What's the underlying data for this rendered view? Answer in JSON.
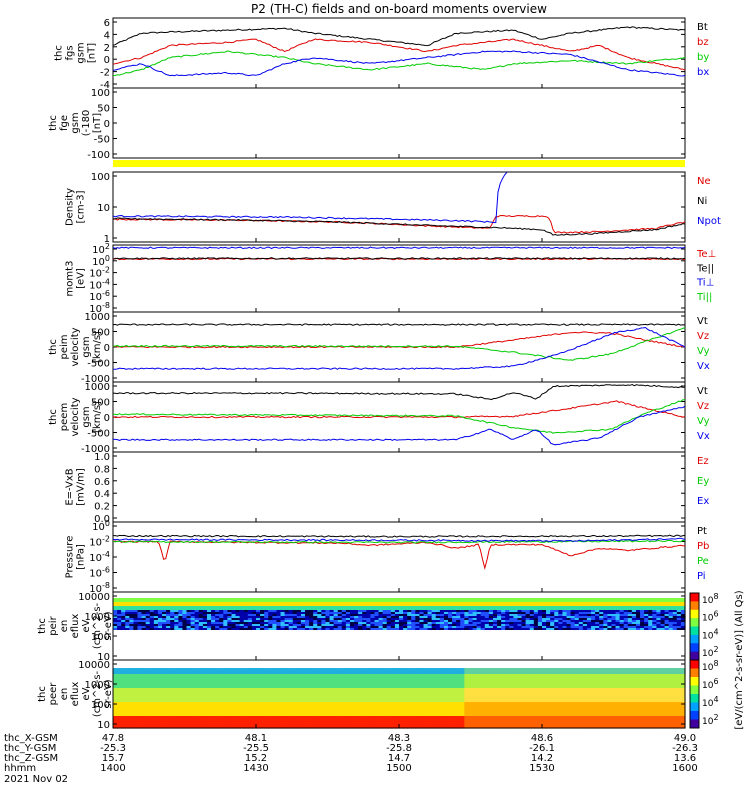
{
  "title": "P2 (TH-C) fields and on-board moments overview",
  "date_label": "2021 Nov 02",
  "colors": {
    "black": "#000000",
    "red": "#e00000",
    "green": "#00cc00",
    "blue": "#0000ee",
    "yellow": "#ffff00"
  },
  "colorbar": {
    "label": "[eV/(cm^2-s-sr-eV)] (All Qs)",
    "top_ticks": [
      "10^8",
      "10^6",
      "10^4",
      "10^2"
    ],
    "bottom_ticks": [
      "10^8",
      "10^6",
      "10^4",
      "10^2"
    ]
  },
  "xaxis": {
    "tick_labels": [
      "1400",
      "1430",
      "1500",
      "1530",
      "1600"
    ],
    "rows": [
      {
        "label": "thc_X-GSM",
        "values": [
          "47.8",
          "48.1",
          "48.3",
          "48.6",
          "49.0"
        ]
      },
      {
        "label": "thc_Y-GSM",
        "values": [
          "-25.3",
          "-25.5",
          "-25.8",
          "-26.1",
          "-26.3"
        ]
      },
      {
        "label": "thc_Z-GSM",
        "values": [
          "15.7",
          "15.2",
          "14.7",
          "14.2",
          "13.6"
        ]
      },
      {
        "label": "hhmm",
        "values": [
          "1400",
          "1430",
          "1500",
          "1530",
          "1600"
        ]
      }
    ]
  },
  "chart_data": [
    {
      "type": "line",
      "ylabel": [
        "thc",
        "fgs",
        "gsm",
        "[nT]"
      ],
      "yticks": [
        "6",
        "4",
        "2",
        "0",
        "-2",
        "-4"
      ],
      "ylim": [
        -5,
        6.5
      ],
      "legend": [
        "Bt",
        "bz",
        "by",
        "bx"
      ],
      "series": [
        {
          "name": "Bt",
          "color": "black",
          "points": [
            [
              0,
              2
            ],
            [
              0.05,
              4
            ],
            [
              0.1,
              4.2
            ],
            [
              0.2,
              4.5
            ],
            [
              0.3,
              4.8
            ],
            [
              0.35,
              4
            ],
            [
              0.45,
              3
            ],
            [
              0.55,
              2
            ],
            [
              0.6,
              4
            ],
            [
              0.7,
              4.5
            ],
            [
              0.75,
              3
            ],
            [
              0.8,
              4
            ],
            [
              0.9,
              5
            ],
            [
              1,
              4.5
            ]
          ]
        },
        {
          "name": "bz",
          "color": "red",
          "points": [
            [
              0,
              -1
            ],
            [
              0.05,
              0
            ],
            [
              0.1,
              2
            ],
            [
              0.2,
              2.5
            ],
            [
              0.25,
              3
            ],
            [
              0.3,
              1
            ],
            [
              0.35,
              3
            ],
            [
              0.45,
              2.5
            ],
            [
              0.55,
              1
            ],
            [
              0.6,
              2
            ],
            [
              0.7,
              3
            ],
            [
              0.8,
              1
            ],
            [
              0.85,
              2
            ],
            [
              0.9,
              0
            ],
            [
              1,
              -2
            ]
          ]
        },
        {
          "name": "by",
          "color": "green",
          "points": [
            [
              0,
              -3
            ],
            [
              0.05,
              -2
            ],
            [
              0.1,
              0
            ],
            [
              0.2,
              1
            ],
            [
              0.3,
              0
            ],
            [
              0.35,
              -1
            ],
            [
              0.45,
              -2
            ],
            [
              0.55,
              -1
            ],
            [
              0.65,
              -2
            ],
            [
              0.7,
              -1
            ],
            [
              0.8,
              -0.5
            ],
            [
              0.9,
              -1
            ],
            [
              1,
              0
            ]
          ]
        },
        {
          "name": "bx",
          "color": "blue",
          "points": [
            [
              0,
              -2
            ],
            [
              0.05,
              -1
            ],
            [
              0.1,
              -3
            ],
            [
              0.2,
              -2.5
            ],
            [
              0.25,
              -3
            ],
            [
              0.3,
              -1
            ],
            [
              0.35,
              0
            ],
            [
              0.45,
              -1
            ],
            [
              0.55,
              0
            ],
            [
              0.65,
              1
            ],
            [
              0.7,
              1
            ],
            [
              0.8,
              0.5
            ],
            [
              0.9,
              -2
            ],
            [
              1,
              -3
            ]
          ]
        }
      ]
    },
    {
      "type": "line",
      "ylabel": [
        "thc",
        "fge",
        "gsm",
        "(-180",
        "[nT]"
      ],
      "yticks": [
        "100",
        "50",
        "0",
        "-50",
        "-100"
      ],
      "ylim": [
        -130,
        100
      ],
      "legend": [],
      "series": []
    },
    {
      "type": "line",
      "ylabel": [
        "Density",
        "[cm-3]"
      ],
      "yticks": [
        "100",
        "10",
        "1"
      ],
      "ylim": [
        0.6,
        300
      ],
      "log": true,
      "legend": [
        "Ne",
        "Ni",
        "Npot"
      ],
      "series": [
        {
          "name": "Ne",
          "color": "red",
          "points": [
            [
              0,
              4.5
            ],
            [
              0.2,
              4.2
            ],
            [
              0.4,
              3.5
            ],
            [
              0.55,
              2.5
            ],
            [
              0.66,
              2
            ],
            [
              0.67,
              6
            ],
            [
              0.76,
              6
            ],
            [
              0.77,
              1.4
            ],
            [
              0.85,
              1.5
            ],
            [
              0.95,
              2
            ],
            [
              1,
              3.5
            ]
          ]
        },
        {
          "name": "Ni",
          "color": "black",
          "points": [
            [
              0,
              4.8
            ],
            [
              0.2,
              4.3
            ],
            [
              0.4,
              3.5
            ],
            [
              0.55,
              2.6
            ],
            [
              0.66,
              2.2
            ],
            [
              0.75,
              1.8
            ],
            [
              0.77,
              1.1
            ],
            [
              0.85,
              1.3
            ],
            [
              0.95,
              1.8
            ],
            [
              1,
              3
            ]
          ]
        },
        {
          "name": "Npot",
          "color": "blue",
          "points": [
            [
              0,
              6
            ],
            [
              0.3,
              5.5
            ],
            [
              0.6,
              4
            ],
            [
              0.67,
              3.5
            ],
            [
              0.69,
              300
            ]
          ]
        }
      ]
    },
    {
      "type": "line",
      "ylabel": [
        "momt3",
        "[eV]"
      ],
      "yticks": [
        "10^2",
        "10^0",
        "10^-2",
        "10^-4",
        "10^-6",
        "10^-8"
      ],
      "ylim": [
        -9,
        3
      ],
      "log_exponent": true,
      "legend": [
        "Te⊥",
        "Te||",
        "Ti⊥",
        "Ti||"
      ],
      "series": [
        {
          "name": "Te⊥",
          "color": "red",
          "points": [
            [
              0,
              0.5
            ],
            [
              1,
              0.5
            ]
          ]
        },
        {
          "name": "Te||",
          "color": "black",
          "points": [
            [
              0,
              0.6
            ],
            [
              1,
              0.6
            ]
          ]
        },
        {
          "name": "Ti⊥",
          "color": "blue",
          "points": [
            [
              0,
              2.5
            ],
            [
              1,
              2.5
            ]
          ]
        }
      ]
    },
    {
      "type": "line",
      "ylabel": [
        "thc",
        "peim",
        "velocity",
        "gsm",
        "[km/s]"
      ],
      "yticks": [
        "1000",
        "500",
        "0",
        "-500",
        "-1000"
      ],
      "ylim": [
        -1000,
        1000
      ],
      "legend": [
        "Vt",
        "Vz",
        "Vy",
        "Vx"
      ],
      "series": [
        {
          "name": "Vt",
          "color": "black",
          "points": [
            [
              0,
              640
            ],
            [
              0.5,
              640
            ],
            [
              1,
              640
            ]
          ]
        },
        {
          "name": "Vz",
          "color": "red",
          "points": [
            [
              0,
              0
            ],
            [
              0.4,
              0
            ],
            [
              0.6,
              0
            ],
            [
              0.7,
              200
            ],
            [
              0.8,
              420
            ],
            [
              0.87,
              400
            ],
            [
              0.93,
              200
            ],
            [
              1,
              0
            ]
          ]
        },
        {
          "name": "Vy",
          "color": "green",
          "points": [
            [
              0,
              30
            ],
            [
              0.6,
              20
            ],
            [
              0.7,
              -150
            ],
            [
              0.8,
              -380
            ],
            [
              0.87,
              -200
            ],
            [
              0.93,
              150
            ],
            [
              1,
              550
            ]
          ]
        },
        {
          "name": "Vx",
          "color": "blue",
          "points": [
            [
              0,
              -620
            ],
            [
              0.6,
              -620
            ],
            [
              0.7,
              -550
            ],
            [
              0.78,
              -200
            ],
            [
              0.88,
              420
            ],
            [
              0.93,
              550
            ],
            [
              1,
              0
            ]
          ]
        }
      ]
    },
    {
      "type": "line",
      "ylabel": [
        "thc",
        "peem",
        "velocity",
        "gsm",
        "[km/s]"
      ],
      "yticks": [
        "1000",
        "500",
        "0",
        "-500",
        "-1000"
      ],
      "ylim": [
        -1000,
        1000
      ],
      "legend": [
        "Vt",
        "Vz",
        "Vy",
        "Vx"
      ],
      "series": [
        {
          "name": "Vt",
          "color": "black",
          "points": [
            [
              0,
              680
            ],
            [
              0.3,
              680
            ],
            [
              0.6,
              660
            ],
            [
              0.66,
              500
            ],
            [
              0.7,
              700
            ],
            [
              0.74,
              520
            ],
            [
              0.77,
              880
            ],
            [
              0.9,
              920
            ],
            [
              1,
              850
            ]
          ]
        },
        {
          "name": "Vz",
          "color": "red",
          "points": [
            [
              0,
              0
            ],
            [
              0.6,
              0
            ],
            [
              0.7,
              20
            ],
            [
              0.8,
              250
            ],
            [
              0.88,
              450
            ],
            [
              0.93,
              250
            ],
            [
              1,
              0
            ]
          ]
        },
        {
          "name": "Vy",
          "color": "green",
          "points": [
            [
              0,
              80
            ],
            [
              0.6,
              30
            ],
            [
              0.7,
              -300
            ],
            [
              0.77,
              -450
            ],
            [
              0.87,
              -350
            ],
            [
              0.93,
              100
            ],
            [
              1,
              500
            ]
          ]
        },
        {
          "name": "Vx",
          "color": "blue",
          "points": [
            [
              0,
              -650
            ],
            [
              0.6,
              -650
            ],
            [
              0.66,
              -350
            ],
            [
              0.7,
              -650
            ],
            [
              0.74,
              -350
            ],
            [
              0.77,
              -800
            ],
            [
              0.85,
              -600
            ],
            [
              0.92,
              0
            ],
            [
              1,
              300
            ]
          ]
        }
      ]
    },
    {
      "type": "line",
      "ylabel": [
        "E=-VxB",
        "[mV/m]"
      ],
      "yticks": [
        "1.0",
        "0.8",
        "0.6",
        "0.4",
        "0.2",
        "0.0"
      ],
      "ylim": [
        0,
        1
      ],
      "legend": [
        "Ez",
        "Ey",
        "Ex"
      ],
      "series": []
    },
    {
      "type": "line",
      "ylabel": [
        "Pressure",
        "[nPa]"
      ],
      "yticks": [
        "10^0",
        "10^-2",
        "10^-4",
        "10^-6",
        "10^-8"
      ],
      "ylim": [
        -9,
        0.6
      ],
      "log_exponent": true,
      "legend": [
        "Pt",
        "Pb",
        "Pe",
        "Pi"
      ],
      "series": [
        {
          "name": "Pt",
          "color": "black",
          "points": [
            [
              0,
              -1.3
            ],
            [
              0.5,
              -1.4
            ],
            [
              1,
              -1.3
            ]
          ]
        },
        {
          "name": "Pb",
          "color": "red",
          "points": [
            [
              0,
              -2.1
            ],
            [
              0.08,
              -2.1
            ],
            [
              0.09,
              -5
            ],
            [
              0.1,
              -2.1
            ],
            [
              0.4,
              -2.3
            ],
            [
              0.45,
              -2.6
            ],
            [
              0.55,
              -2.2
            ],
            [
              0.6,
              -3
            ],
            [
              0.64,
              -2.5
            ],
            [
              0.65,
              -5.8
            ],
            [
              0.66,
              -2.5
            ],
            [
              0.75,
              -2.5
            ],
            [
              0.8,
              -4
            ],
            [
              0.85,
              -3
            ],
            [
              0.9,
              -3.3
            ],
            [
              1,
              -2.6
            ]
          ]
        },
        {
          "name": "Pe",
          "color": "green",
          "points": [
            [
              0,
              -2.1
            ],
            [
              0.5,
              -2.2
            ],
            [
              1,
              -2
            ]
          ]
        },
        {
          "name": "Pi",
          "color": "blue",
          "points": [
            [
              0,
              -1.8
            ],
            [
              0.5,
              -1.9
            ],
            [
              0.8,
              -2
            ],
            [
              1,
              -1.7
            ]
          ]
        }
      ]
    },
    {
      "type": "heatmap",
      "ylabel": [
        "thc",
        "peir",
        "en",
        "eflux",
        "eV",
        "(cm^2-s-",
        "sr-eV)"
      ],
      "yticks": [
        "10000",
        "1000",
        "100",
        "10"
      ],
      "ylim": [
        0.5,
        4.3
      ],
      "log_exponent": false
    },
    {
      "type": "heatmap",
      "ylabel": [
        "thc",
        "peer",
        "en",
        "eflux",
        "eV",
        "(cm^2-s-",
        "sr-eV)"
      ],
      "yticks": [
        "10000",
        "1000",
        "100",
        "10"
      ],
      "ylim": [
        0.5,
        4.3
      ],
      "log_exponent": false
    }
  ]
}
